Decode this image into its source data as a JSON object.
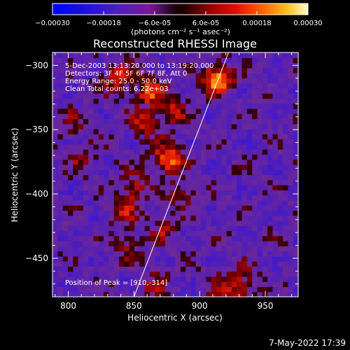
{
  "chart_data": {
    "type": "heatmap",
    "title": "Reconstructed RHESSI Image",
    "xlabel": "Heliocentric X (arcsec)",
    "ylabel": "Heliocentric Y (arcsec)",
    "xlim": [
      788,
      975
    ],
    "ylim": [
      -480,
      -290
    ],
    "x_ticks": [
      800,
      850,
      900,
      950
    ],
    "y_ticks": [
      -300,
      -350,
      -400,
      -450
    ],
    "colorbar": {
      "label": "(photons cm⁻² s⁻¹ asec⁻²)",
      "range": [
        -0.0003,
        0.0003
      ],
      "tick_values": [
        -0.0003,
        -0.00018,
        -6e-05,
        6e-05,
        0.00018,
        0.0003
      ],
      "tick_labels": [
        "-0.00030",
        "-0.00018",
        "-6.0e-05",
        "6.0e-05",
        "0.00018",
        "0.00030"
      ]
    },
    "annotations": [
      "5-Dec-2003 13:13:20.000 to 13:19:20.000",
      "Detectors: 3F 4F 5F 6F 7F 8F, Att 0",
      "Energy Range: 25.0 - 50.0 keV",
      "Clean    Total counts: 6.22e+03"
    ],
    "peak_label": "Position of Peak = [910,-314]",
    "peak": [
      910,
      -314
    ],
    "limb_line": [
      [
        850,
        -480
      ],
      [
        922,
        -290
      ]
    ],
    "sources": [
      {
        "x": 914,
        "y": -310,
        "peak": 0.0003
      },
      {
        "x": 876,
        "y": -372,
        "peak": 0.00026
      },
      {
        "x": 862,
        "y": -320,
        "peak": 0.0002
      },
      {
        "x": 838,
        "y": -310,
        "peak": 0.00016
      },
      {
        "x": 857,
        "y": -345,
        "peak": 0.00016
      },
      {
        "x": 880,
        "y": -335,
        "peak": 0.00014
      },
      {
        "x": 850,
        "y": -395,
        "peak": 0.00016
      },
      {
        "x": 842,
        "y": -415,
        "peak": 0.00012
      },
      {
        "x": 845,
        "y": -440,
        "peak": 0.0001
      },
      {
        "x": 873,
        "y": -428,
        "peak": 0.00012
      },
      {
        "x": 812,
        "y": -375,
        "peak": 0.0001
      },
      {
        "x": 803,
        "y": -345,
        "peak": 8e-05
      },
      {
        "x": 920,
        "y": -475,
        "peak": 0.00016
      },
      {
        "x": 935,
        "y": -468,
        "peak": 0.00012
      },
      {
        "x": 866,
        "y": -470,
        "peak": 0.0001
      },
      {
        "x": 887,
        "y": -400,
        "peak": 0.0001
      }
    ]
  },
  "footer": {
    "timestamp": "7-May-2022 17:39"
  }
}
